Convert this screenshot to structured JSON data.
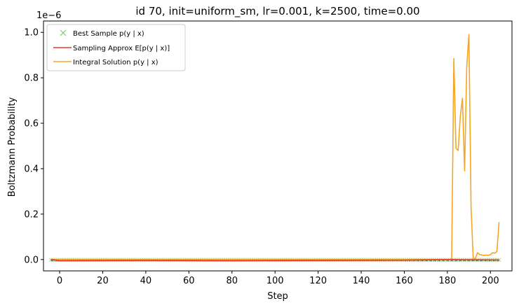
{
  "chart_data": {
    "type": "line",
    "title": "id 70, init=uniform_sm, lr=0.001, k=2500, time=0.00",
    "xlabel": "Step",
    "ylabel": "Boltzmann Probability",
    "y_offset_label": "1e−6",
    "xlim": [
      -7.5,
      210
    ],
    "ylim": [
      -0.05,
      1.05
    ],
    "x_ticks": [
      0,
      20,
      40,
      60,
      80,
      100,
      120,
      140,
      160,
      180,
      200
    ],
    "y_ticks": [
      0.0,
      0.2,
      0.4,
      0.6,
      0.8,
      1.0
    ],
    "y_tick_labels": [
      "0.0",
      "0.2",
      "0.4",
      "0.6",
      "0.8",
      "1.0"
    ],
    "grid": false,
    "legend_position": "top-left",
    "legend": [
      {
        "label": "Best Sample p(y | x)",
        "marker": "x",
        "color": "#7fcd6f"
      },
      {
        "label": "Sampling Approx E[p(y | x)]",
        "marker": "line",
        "color": "#e8382a"
      },
      {
        "label": "Integral Solution p(y | x)",
        "marker": "line",
        "color": "#f5a623"
      }
    ],
    "series": [
      {
        "name": "Integral Solution p(y | x)",
        "color": "#f5a623",
        "x": [
          -4,
          0,
          20,
          40,
          60,
          80,
          100,
          120,
          140,
          160,
          181,
          182,
          183,
          184,
          185,
          186,
          187,
          188,
          189,
          190,
          191,
          192,
          193,
          194,
          195,
          196,
          197,
          198,
          199,
          200,
          201,
          202,
          203,
          204
        ],
        "y": [
          0.0,
          0.0,
          0.0,
          0.0,
          0.0,
          0.0,
          0.0,
          0.0,
          0.0,
          0.0,
          0.0,
          0.0,
          0.885,
          0.49,
          0.48,
          0.63,
          0.71,
          0.39,
          0.85,
          0.99,
          0.23,
          0.005,
          0.005,
          0.03,
          0.022,
          0.02,
          0.018,
          0.02,
          0.018,
          0.022,
          0.03,
          0.028,
          0.035,
          0.165
        ]
      },
      {
        "name": "Sampling Approx E[p(y | x)]",
        "color": "#e8382a",
        "x": [
          -4,
          0,
          40,
          80,
          120,
          160,
          180,
          204
        ],
        "y": [
          0.0,
          -0.005,
          -0.004,
          -0.005,
          -0.004,
          -0.003,
          0.0,
          -0.002
        ]
      }
    ],
    "best_sample_points": {
      "name": "Best Sample p(y | x)",
      "color": "#7fcd6f",
      "x_start": -4,
      "x_end": 204,
      "y": 0.0
    }
  }
}
